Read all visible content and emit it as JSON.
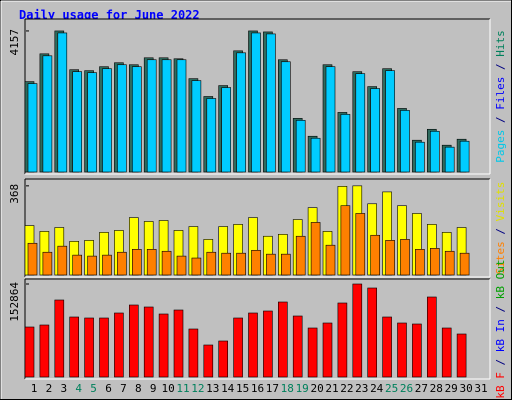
{
  "chart_data": [
    {
      "type": "bar",
      "title": "Daily usage for June 2022",
      "ylim": [
        0,
        4450
      ],
      "yticks": [
        4157
      ],
      "side_label": [
        {
          "text": "Pages",
          "color": "#00c8e8"
        },
        {
          "text": " / ",
          "color": "#000080"
        },
        {
          "text": "Files",
          "color": "#0000ff"
        },
        {
          "text": " / ",
          "color": "#000080"
        },
        {
          "text": "Hits",
          "color": "#00805c"
        }
      ],
      "series": [
        {
          "name": "Hits",
          "color": "#2e6b5e",
          "values": [
            2664,
            3483,
            4157,
            3015,
            2986,
            3103,
            3220,
            3161,
            3366,
            3366,
            3337,
            2751,
            2225,
            2547,
            3571,
            4157,
            4128,
            3308,
            1581,
            1054,
            3161,
            1756,
            2956,
            2517,
            3044,
            1873,
            937,
            1259,
            790,
            966,
            null
          ]
        },
        {
          "name": "Pages",
          "color": "#00ccff",
          "values": [
            2605,
            3424,
            4098,
            2956,
            2927,
            3044,
            3161,
            3103,
            3308,
            3308,
            3308,
            2693,
            2166,
            2488,
            3512,
            4098,
            4069,
            3249,
            1522,
            995,
            3103,
            1698,
            2898,
            2459,
            2986,
            1815,
            878,
            1200,
            732,
            907,
            null
          ]
        }
      ]
    },
    {
      "type": "bar",
      "ylim": [
        0,
        388
      ],
      "yticks": [
        368
      ],
      "side_label": [
        {
          "text": "Sites",
          "color": "#ff8000"
        },
        {
          "text": " / ",
          "color": "#000080"
        },
        {
          "text": "Visits",
          "color": "#e0e000"
        }
      ],
      "series": [
        {
          "name": "Visits",
          "color": "#ffff00",
          "values": [
            204,
            180,
            196,
            139,
            143,
            176,
            184,
            237,
            221,
            225,
            184,
            200,
            147,
            200,
            209,
            237,
            160,
            168,
            229,
            278,
            180,
            366,
            368,
            294,
            343,
            286,
            254,
            209,
            176,
            196,
            null
          ]
        },
        {
          "name": "Sites",
          "color": "#ff8000",
          "values": [
            131,
            94,
            119,
            82,
            78,
            82,
            94,
            106,
            106,
            98,
            78,
            70,
            94,
            90,
            90,
            102,
            86,
            86,
            160,
            217,
            123,
            286,
            254,
            164,
            143,
            147,
            106,
            110,
            98,
            90,
            null
          ]
        }
      ]
    },
    {
      "type": "bar",
      "ylim": [
        0,
        157800
      ],
      "yticks": [
        152864
      ],
      "side_label": [
        {
          "text": "kB F",
          "color": "#ff0000"
        },
        {
          "text": " / ",
          "color": "#000080"
        },
        {
          "text": "kB In",
          "color": "#0000ff"
        },
        {
          "text": " / ",
          "color": "#000080"
        },
        {
          "text": "kB Out",
          "color": "#00a000"
        }
      ],
      "categories": [
        "1",
        "2",
        "3",
        "4",
        "5",
        "6",
        "7",
        "8",
        "9",
        "10",
        "11",
        "12",
        "13",
        "14",
        "15",
        "16",
        "17",
        "18",
        "19",
        "20",
        "21",
        "22",
        "23",
        "24",
        "25",
        "26",
        "27",
        "28",
        "29",
        "30",
        "31"
      ],
      "category_colors": [
        "#000000",
        "#000000",
        "#000000",
        "#00805c",
        "#00805c",
        "#000000",
        "#000000",
        "#000000",
        "#000000",
        "#000000",
        "#00805c",
        "#00805c",
        "#000000",
        "#000000",
        "#000000",
        "#000000",
        "#000000",
        "#00805c",
        "#00805c",
        "#000000",
        "#000000",
        "#000000",
        "#000000",
        "#000000",
        "#00805c",
        "#00805c",
        "#000000",
        "#000000",
        "#000000",
        "#000000",
        "#000000"
      ],
      "series": [
        {
          "name": "kB F",
          "color": "#ff0000",
          "values": [
            82185,
            85472,
            126565,
            98622,
            96978,
            96978,
            105197,
            118346,
            115059,
            103553,
            110128,
            78898,
            52598,
            59173,
            96978,
            105197,
            108484,
            123278,
            100265,
            80540,
            88759,
            121634,
            152864,
            146290,
            98622,
            88759,
            87116,
            131496,
            80540,
            70679,
            null
          ]
        }
      ]
    }
  ]
}
